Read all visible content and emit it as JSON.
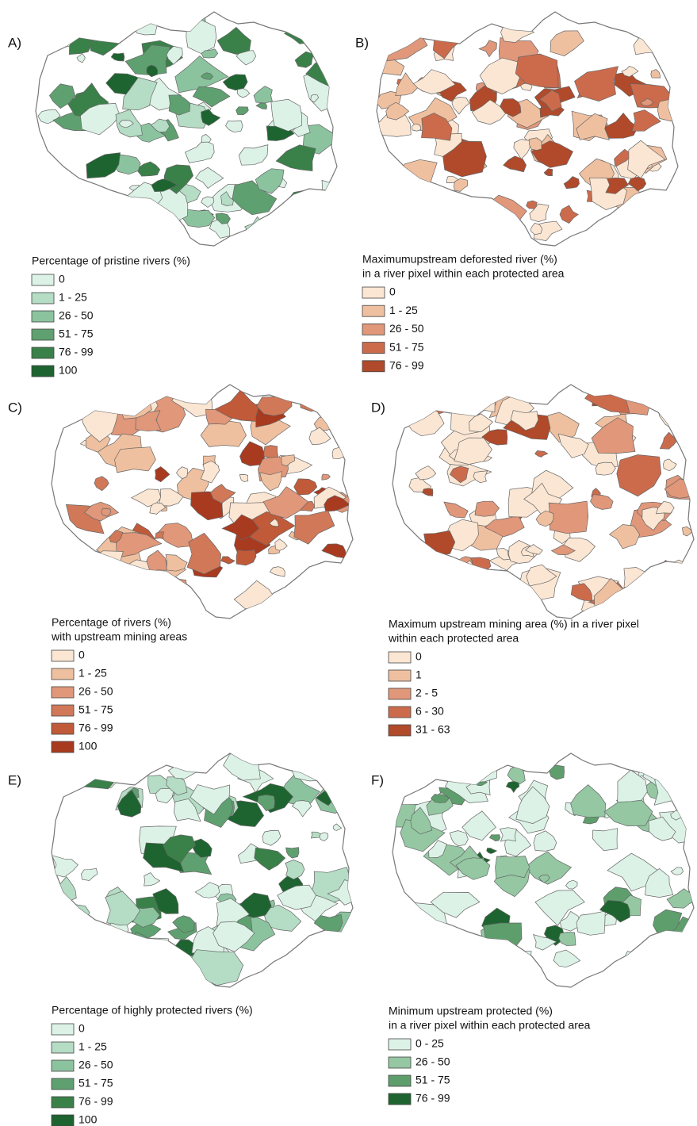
{
  "panels": [
    {
      "label": "A)",
      "legend": {
        "title": [
          "Percentage of pristine rivers (%)"
        ],
        "items": [
          {
            "label": "0",
            "color": "#dcf2e6"
          },
          {
            "label": "1 - 25",
            "color": "#b5dcc4"
          },
          {
            "label": "26 - 50",
            "color": "#8cc39f"
          },
          {
            "label": "51 - 75",
            "color": "#5fa070"
          },
          {
            "label": "76 - 99",
            "color": "#3a8049"
          },
          {
            "label": "100",
            "color": "#1e6430"
          }
        ]
      }
    },
    {
      "label": "B)",
      "legend": {
        "title": [
          "Maximumupstream deforested river (%)",
          "in a river pixel within each protected area"
        ],
        "items": [
          {
            "label": "0",
            "color": "#fbe6d3"
          },
          {
            "label": "1 - 25",
            "color": "#efc0a0"
          },
          {
            "label": "26 - 50",
            "color": "#e0977a"
          },
          {
            "label": "51 - 75",
            "color": "#cc6b4c"
          },
          {
            "label": "76 - 99",
            "color": "#b04a2a"
          }
        ]
      }
    },
    {
      "label": "C)",
      "legend": {
        "title": [
          "Percentage of rivers (%)",
          "with upstream mining areas"
        ],
        "items": [
          {
            "label": "0",
            "color": "#fbe6d3"
          },
          {
            "label": "1 - 25",
            "color": "#efc0a0"
          },
          {
            "label": "26 - 50",
            "color": "#e0977a"
          },
          {
            "label": "51 - 75",
            "color": "#d07858"
          },
          {
            "label": "76 - 99",
            "color": "#c05a38"
          },
          {
            "label": "100",
            "color": "#a83a20"
          }
        ]
      }
    },
    {
      "label": "D)",
      "legend": {
        "title": [
          "Maximum upstream mining area (%) in a river pixel",
          "within each protected area"
        ],
        "items": [
          {
            "label": "0",
            "color": "#fbe6d3"
          },
          {
            "label": "1",
            "color": "#efc0a0"
          },
          {
            "label": "2 - 5",
            "color": "#e0977a"
          },
          {
            "label": "6 - 30",
            "color": "#cc6b4c"
          },
          {
            "label": "31 - 63",
            "color": "#b04a2a"
          }
        ]
      }
    },
    {
      "label": "E)",
      "legend": {
        "title": [
          "Percentage of highly protected rivers (%)"
        ],
        "items": [
          {
            "label": "0",
            "color": "#dcf2e6"
          },
          {
            "label": "1 - 25",
            "color": "#b5dcc4"
          },
          {
            "label": "26 - 50",
            "color": "#8cc39f"
          },
          {
            "label": "51 - 75",
            "color": "#5fa070"
          },
          {
            "label": "76 - 99",
            "color": "#3a8049"
          },
          {
            "label": "100",
            "color": "#1e6430"
          }
        ]
      }
    },
    {
      "label": "F)",
      "legend": {
        "title": [
          "Minimum upstream protected (%)",
          "in a river pixel within each protected area"
        ],
        "items": [
          {
            "label": "0 - 25",
            "color": "#dcf2e6"
          },
          {
            "label": "26 - 50",
            "color": "#94c7a2"
          },
          {
            "label": "51 - 75",
            "color": "#5e9e6c"
          },
          {
            "label": "76 - 99",
            "color": "#1e6430"
          }
        ]
      }
    }
  ]
}
